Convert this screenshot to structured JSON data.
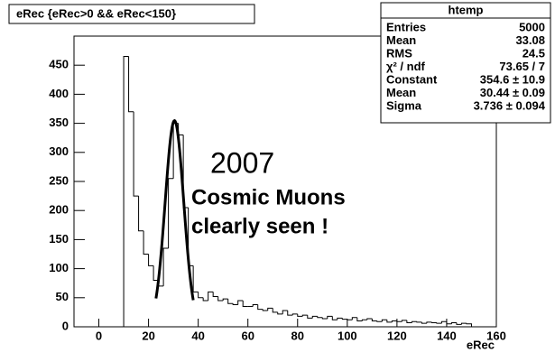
{
  "chart_data": {
    "type": "histogram",
    "title": "eRec {eRec>0 && eRec<150}",
    "x_label": "eRec",
    "annotations": [
      "2007",
      "Cosmic Muons",
      "clearly seen !"
    ],
    "stats": {
      "title": "htemp",
      "rows": [
        [
          "Entries",
          "5000"
        ],
        [
          "Mean",
          "33.08"
        ],
        [
          "RMS",
          "24.5"
        ],
        [
          "χ² / ndf",
          "73.65 / 7"
        ],
        [
          "Constant",
          "354.6 ± 10.9"
        ],
        [
          "Mean",
          "30.44 ± 0.09"
        ],
        [
          "Sigma",
          "3.736 ± 0.094"
        ]
      ]
    },
    "fit": {
      "constant": 354.6,
      "mean": 30.44,
      "sigma": 3.736,
      "range": [
        23,
        38
      ]
    },
    "bins": [
      10,
      12,
      14,
      16,
      18,
      20,
      22,
      24,
      26,
      28,
      30,
      32,
      34,
      36,
      38,
      40,
      42,
      44,
      46,
      48,
      50,
      52,
      54,
      56,
      58,
      60,
      62,
      64,
      66,
      68,
      70,
      72,
      74,
      76,
      78,
      80,
      82,
      84,
      86,
      88,
      90,
      92,
      94,
      96,
      98,
      100,
      102,
      104,
      106,
      108,
      110,
      112,
      114,
      116,
      118,
      120,
      122,
      124,
      126,
      128,
      130,
      132,
      134,
      136,
      138,
      140,
      142,
      144,
      146,
      148,
      150
    ],
    "values": [
      465,
      370,
      225,
      165,
      125,
      105,
      80,
      70,
      135,
      255,
      350,
      330,
      205,
      105,
      60,
      50,
      45,
      60,
      52,
      45,
      48,
      40,
      38,
      45,
      35,
      35,
      38,
      30,
      28,
      32,
      25,
      22,
      28,
      20,
      22,
      18,
      20,
      15,
      18,
      16,
      14,
      18,
      12,
      15,
      13,
      12,
      16,
      10,
      12,
      14,
      10,
      9,
      12,
      8,
      10,
      9,
      11,
      7,
      9,
      8,
      6,
      8,
      7,
      6,
      9,
      5,
      7,
      4,
      6,
      5
    ],
    "color": "#000000",
    "xlim": [
      -10,
      160
    ],
    "ylim": [
      0,
      500
    ],
    "xticks": [
      0,
      20,
      40,
      60,
      80,
      100,
      120,
      140,
      160
    ],
    "yticks": [
      0,
      50,
      100,
      150,
      200,
      250,
      300,
      350,
      400,
      450
    ]
  }
}
